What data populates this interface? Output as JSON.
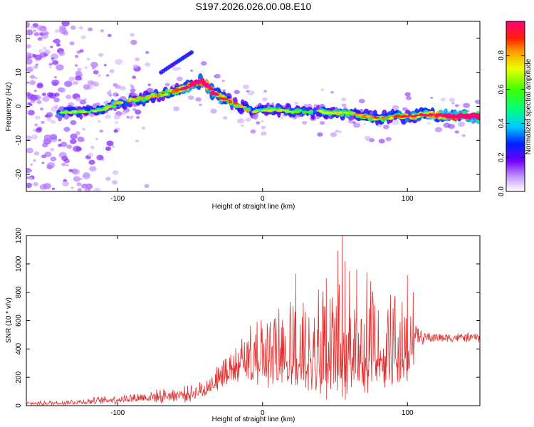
{
  "chart_data": [
    {
      "type": "heatmap",
      "title": "S197.2026.026.00.08.E10",
      "xlabel": "Height of straight line (km)",
      "ylabel": "Frequency (Hz)",
      "xlim": [
        -163,
        150
      ],
      "ylim": [
        -25,
        25
      ],
      "xticks": [
        -100,
        0,
        100
      ],
      "yticks": [
        20,
        10,
        0,
        -10,
        -20
      ],
      "colorbar": {
        "label": "Normalized spectral amplitude",
        "range": [
          0,
          1
        ],
        "ticks": [
          "0.0",
          "0.2",
          "0.4",
          "0.6",
          "0.8"
        ],
        "tick_values": [
          0.0,
          0.2,
          0.4,
          0.6,
          0.8
        ]
      },
      "ridge": {
        "x": [
          -140,
          -130,
          -120,
          -110,
          -100,
          -90,
          -80,
          -70,
          -60,
          -50,
          -45,
          -42,
          -38,
          -34,
          -30,
          -25,
          -20,
          -15,
          -10,
          -5,
          0,
          10,
          20,
          30,
          40,
          50,
          60,
          70,
          80,
          90,
          100,
          110,
          120,
          130,
          140,
          150
        ],
        "freq": [
          -2,
          -1.5,
          -1.5,
          -1,
          1,
          2,
          2.5,
          3.5,
          4.5,
          6,
          7,
          7.5,
          6,
          4,
          3,
          2,
          1,
          0,
          -1,
          -1.5,
          -1,
          -1,
          -1.5,
          -1.5,
          -1.5,
          -2,
          -2,
          -3,
          -3.5,
          -3,
          -3,
          -2.5,
          -2.5,
          -3,
          -3,
          -3
        ],
        "amp": [
          0.35,
          0.3,
          0.3,
          0.35,
          0.4,
          0.4,
          0.45,
          0.5,
          0.5,
          0.7,
          0.9,
          0.85,
          0.75,
          0.7,
          0.6,
          0.55,
          0.5,
          0.45,
          0.4,
          0.35,
          0.4,
          0.35,
          0.35,
          0.3,
          0.35,
          0.4,
          0.4,
          0.45,
          0.5,
          0.5,
          0.55,
          0.6,
          0.7,
          0.8,
          0.9,
          0.95
        ]
      }
    },
    {
      "type": "line",
      "xlabel": "Height of straight line (km)",
      "ylabel": "SNR (10 * v/v)",
      "xlim": [
        -163,
        150
      ],
      "ylim": [
        0,
        1200
      ],
      "xticks": [
        -100,
        0,
        100
      ],
      "yticks": [
        0,
        200,
        400,
        600,
        800,
        1000,
        1200
      ],
      "color": "#e03030",
      "envelope": {
        "x": [
          -163,
          -140,
          -120,
          -100,
          -80,
          -60,
          -50,
          -40,
          -35,
          -30,
          -25,
          -20,
          -15,
          -10,
          -5,
          0,
          5,
          10,
          15,
          20,
          25,
          30,
          35,
          40,
          45,
          50,
          55,
          60,
          65,
          70,
          75,
          80,
          85,
          90,
          95,
          100,
          103,
          105,
          110,
          120,
          130,
          140,
          150
        ],
        "base": [
          15,
          20,
          30,
          45,
          60,
          75,
          85,
          110,
          150,
          220,
          260,
          300,
          340,
          380,
          400,
          410,
          420,
          430,
          440,
          450,
          460,
          470,
          470,
          480,
          480,
          480,
          480,
          480,
          480,
          480,
          480,
          470,
          470,
          470,
          470,
          480,
          480,
          480,
          480,
          480,
          480,
          480,
          480
        ],
        "spread": [
          15,
          20,
          25,
          35,
          45,
          55,
          60,
          70,
          80,
          100,
          130,
          160,
          190,
          220,
          250,
          280,
          300,
          320,
          340,
          360,
          380,
          400,
          420,
          440,
          450,
          460,
          470,
          470,
          460,
          450,
          420,
          400,
          380,
          360,
          340,
          320,
          180,
          100,
          50,
          40,
          35,
          35,
          35
        ]
      },
      "spikes": [
        [
          23,
          930
        ],
        [
          44,
          900
        ],
        [
          52,
          1090
        ],
        [
          55,
          1200
        ],
        [
          57,
          1020
        ],
        [
          60,
          950
        ],
        [
          65,
          960
        ],
        [
          72,
          940
        ],
        [
          100,
          920
        ],
        [
          104,
          800
        ]
      ]
    }
  ]
}
